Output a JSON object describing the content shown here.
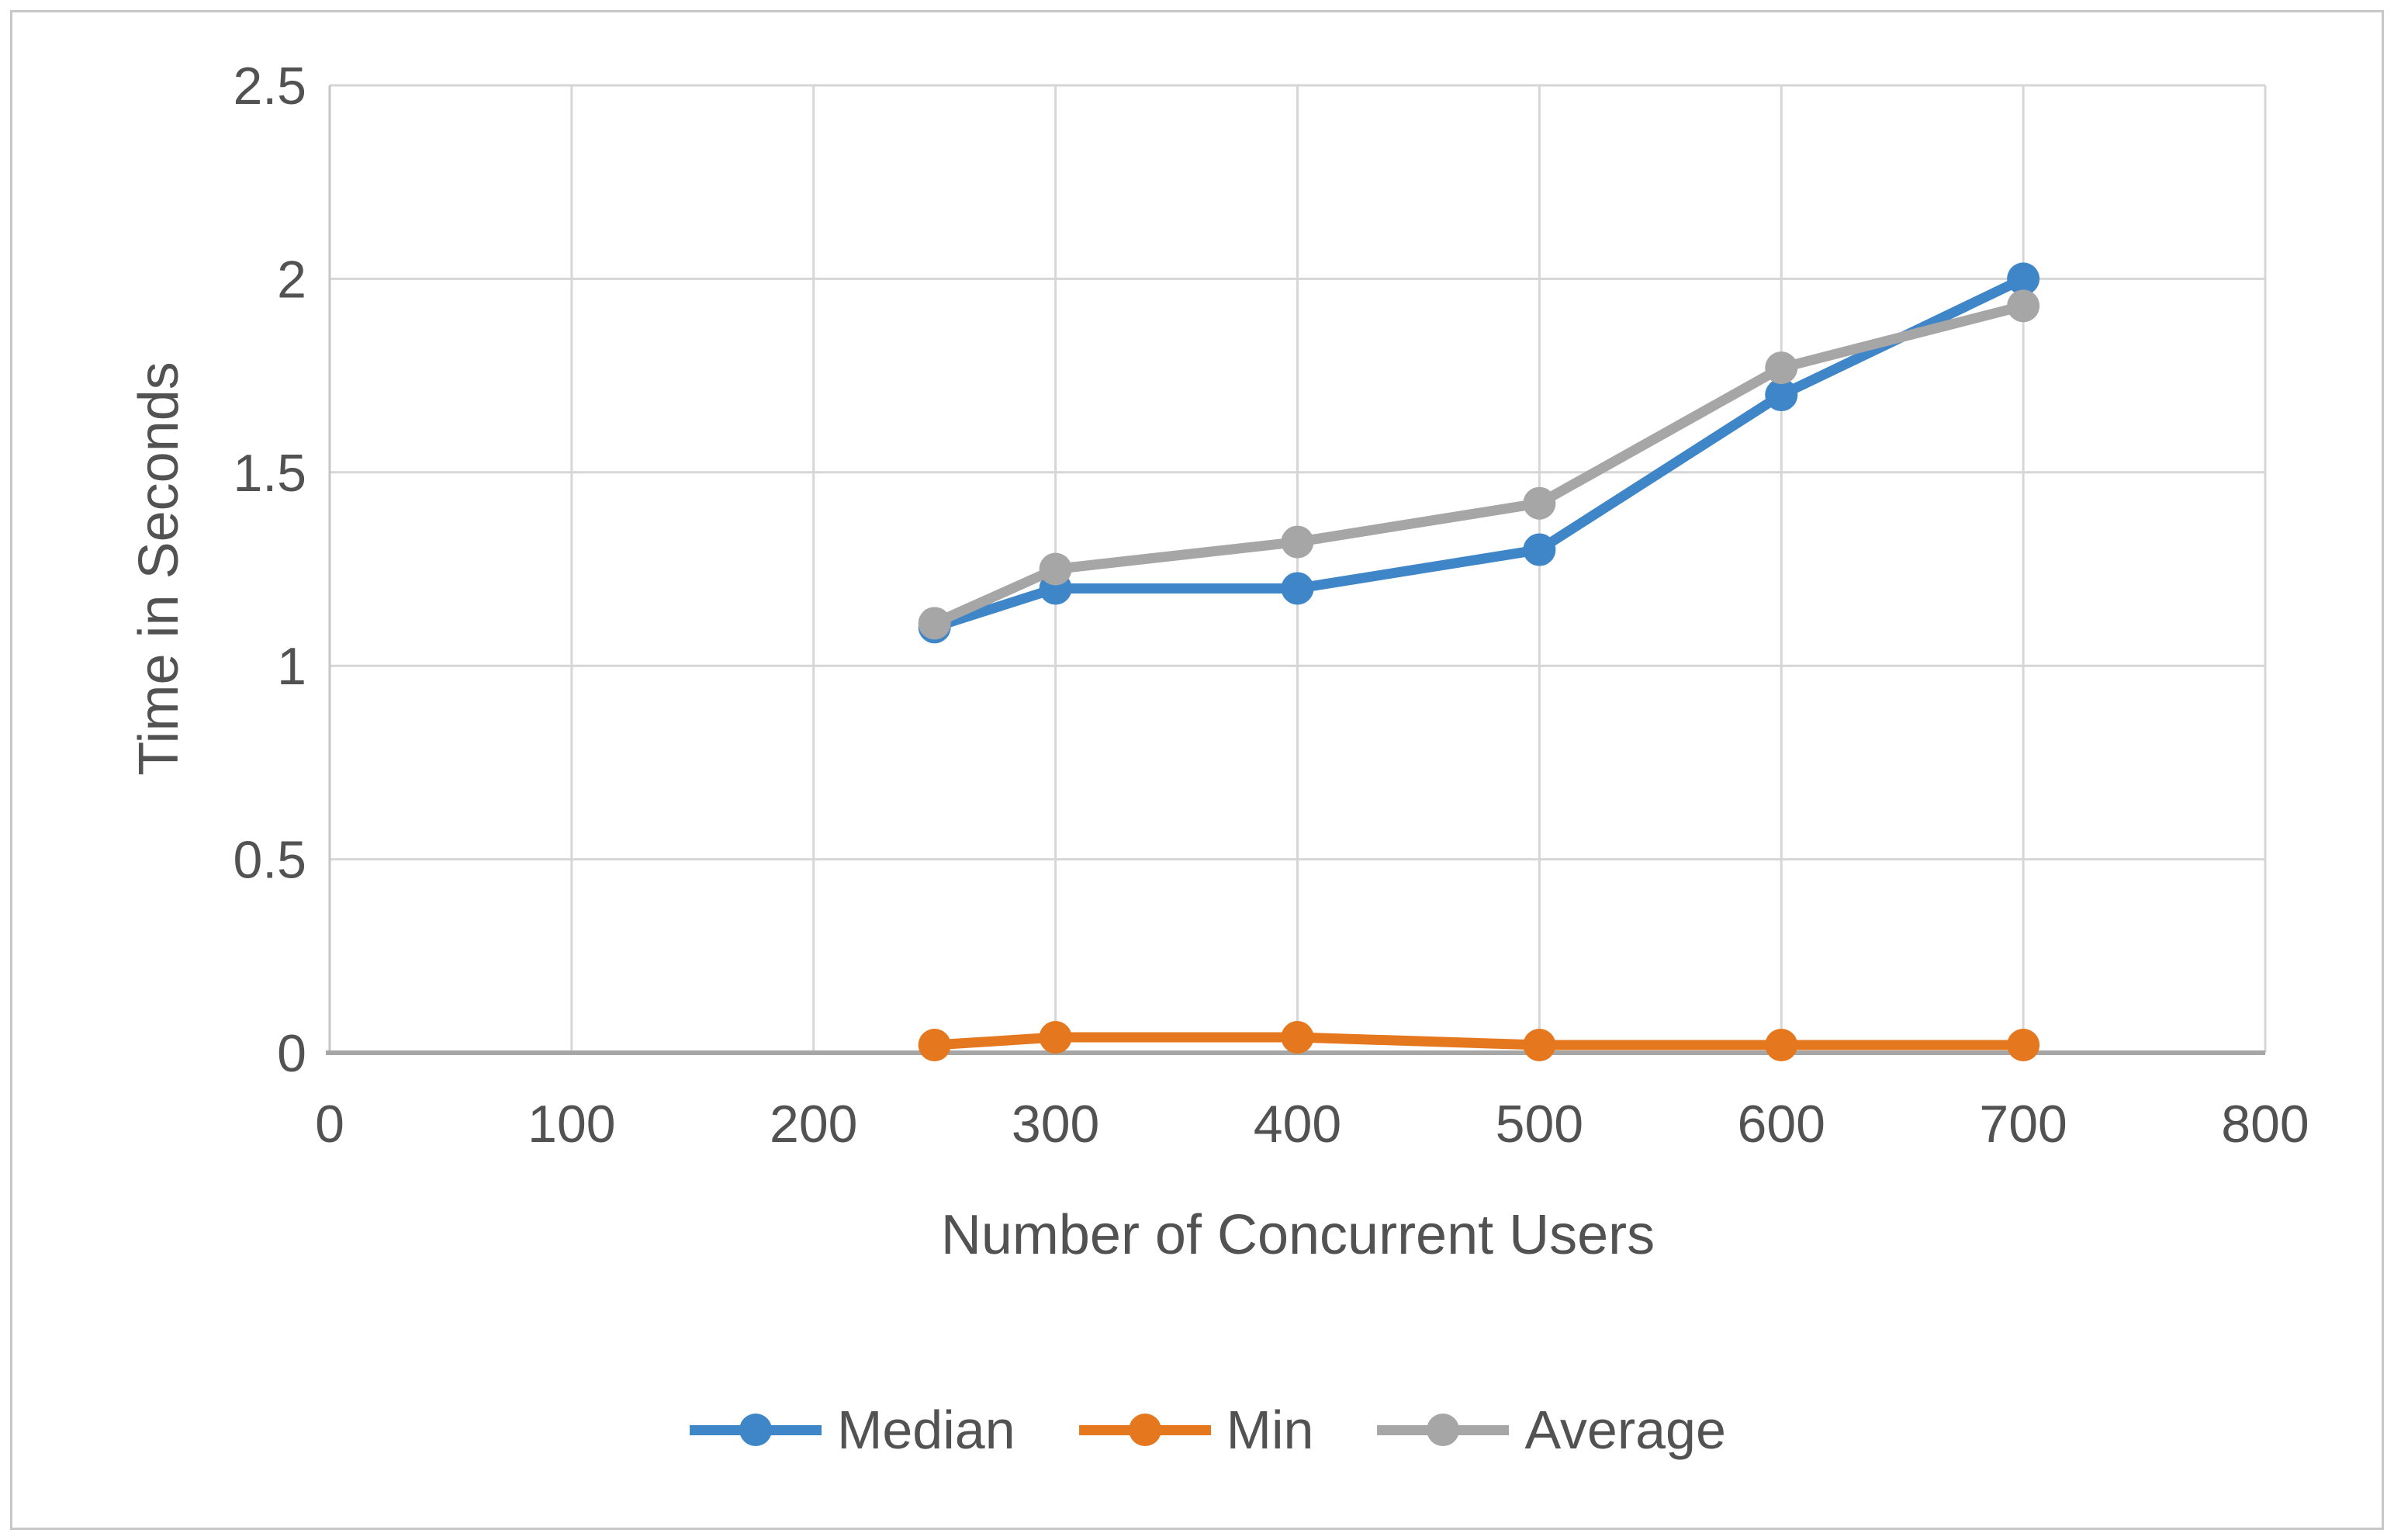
{
  "chart_data": {
    "type": "line",
    "title": "",
    "xlabel": "Number of Concurrent Users",
    "ylabel": "Time in Seconds",
    "x": [
      250,
      300,
      400,
      500,
      600,
      700
    ],
    "series": [
      {
        "name": "Median",
        "color": "#3F86C8",
        "values": [
          1.1,
          1.2,
          1.2,
          1.3,
          1.7,
          2.0
        ]
      },
      {
        "name": "Min",
        "color": "#E5771E",
        "values": [
          0.02,
          0.04,
          0.04,
          0.02,
          0.02,
          0.02
        ]
      },
      {
        "name": "Average",
        "color": "#A6A6A6",
        "values": [
          1.11,
          1.25,
          1.32,
          1.42,
          1.77,
          1.93
        ]
      }
    ],
    "xlim": [
      0,
      800
    ],
    "ylim": [
      0,
      2.5
    ],
    "x_ticks": [
      0,
      100,
      200,
      300,
      400,
      500,
      600,
      700,
      800
    ],
    "y_ticks": [
      0,
      0.5,
      1,
      1.5,
      2,
      2.5
    ],
    "grid": true,
    "legend_position": "bottom",
    "marker": "circle"
  },
  "colors": {
    "gridline": "#D6D6D6",
    "zero_gridline": "#C6C6C6",
    "axis_line": "#A6A6A6",
    "frame_border": "#C8C8C8",
    "text": "#525252",
    "background": "#FFFFFF"
  }
}
